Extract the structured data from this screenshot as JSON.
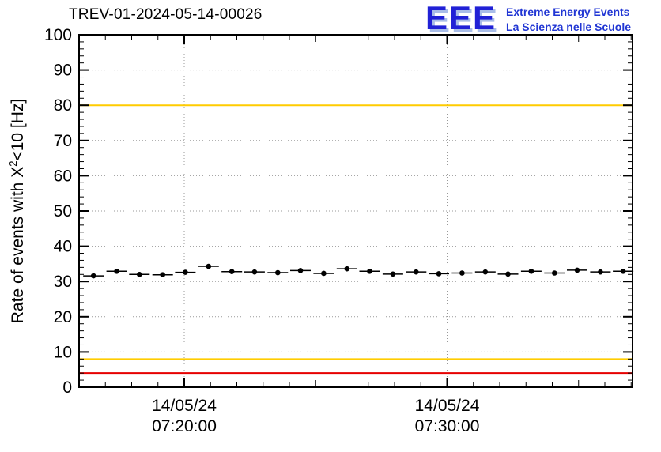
{
  "header": {
    "title": "TREV-01-2024-05-14-00026",
    "logo": {
      "acronym": "EEE",
      "line1": "Extreme Energy Events",
      "line2": "La Scienza nelle Scuole",
      "blue": "#2136d4"
    }
  },
  "chart_data": {
    "type": "scatter",
    "title": "TREV-01-2024-05-14-00026",
    "xlabel": "",
    "ylabel": "Rate of events with X^2<10 [Hz]",
    "ylabel_parts": {
      "prefix": "Rate of events with X",
      "sup": "2",
      "suffix": "<10 [Hz]"
    },
    "ylim": [
      0,
      100
    ],
    "yticks": [
      0,
      10,
      20,
      30,
      40,
      50,
      60,
      70,
      80,
      90,
      100
    ],
    "grid": true,
    "legend": false,
    "marker_color": "#000000",
    "thresholds": [
      {
        "value": 100,
        "color": "#e60000",
        "name": "upper-alarm"
      },
      {
        "value": 80,
        "color": "#ffcc00",
        "name": "upper-warning"
      },
      {
        "value": 8,
        "color": "#ffcc00",
        "name": "lower-warning"
      },
      {
        "value": 4,
        "color": "#e60000",
        "name": "lower-alarm"
      }
    ],
    "xtick_labels": [
      {
        "date": "14/05/24",
        "time": "07:20:00",
        "frac": 0.19
      },
      {
        "date": "14/05/24",
        "time": "07:30:00",
        "frac": 0.665
      }
    ],
    "minor_tick_minutes": 1,
    "points": [
      {
        "f": 0.026,
        "y": 31.6
      },
      {
        "f": 0.068,
        "y": 32.9
      },
      {
        "f": 0.109,
        "y": 32.0
      },
      {
        "f": 0.151,
        "y": 31.9
      },
      {
        "f": 0.192,
        "y": 32.6
      },
      {
        "f": 0.234,
        "y": 34.3
      },
      {
        "f": 0.276,
        "y": 32.8
      },
      {
        "f": 0.317,
        "y": 32.7
      },
      {
        "f": 0.359,
        "y": 32.5
      },
      {
        "f": 0.4,
        "y": 33.1
      },
      {
        "f": 0.442,
        "y": 32.3
      },
      {
        "f": 0.484,
        "y": 33.6
      },
      {
        "f": 0.525,
        "y": 32.9
      },
      {
        "f": 0.567,
        "y": 32.1
      },
      {
        "f": 0.609,
        "y": 32.7
      },
      {
        "f": 0.65,
        "y": 32.2
      },
      {
        "f": 0.692,
        "y": 32.4
      },
      {
        "f": 0.734,
        "y": 32.7
      },
      {
        "f": 0.775,
        "y": 32.1
      },
      {
        "f": 0.817,
        "y": 32.9
      },
      {
        "f": 0.859,
        "y": 32.4
      },
      {
        "f": 0.9,
        "y": 33.2
      },
      {
        "f": 0.942,
        "y": 32.7
      },
      {
        "f": 0.983,
        "y": 32.9
      }
    ]
  }
}
